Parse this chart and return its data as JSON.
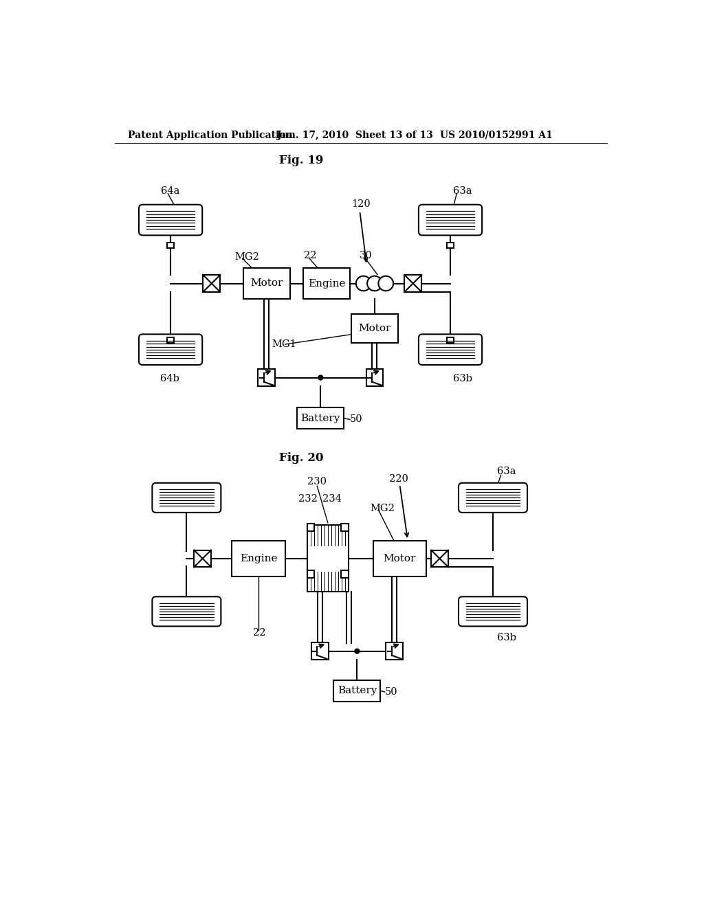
{
  "header_left": "Patent Application Publication",
  "header_mid": "Jun. 17, 2010  Sheet 13 of 13",
  "header_right": "US 2010/0152991 A1",
  "fig19_title": "Fig. 19",
  "fig20_title": "Fig. 20",
  "bg_color": "#ffffff",
  "line_color": "#000000"
}
